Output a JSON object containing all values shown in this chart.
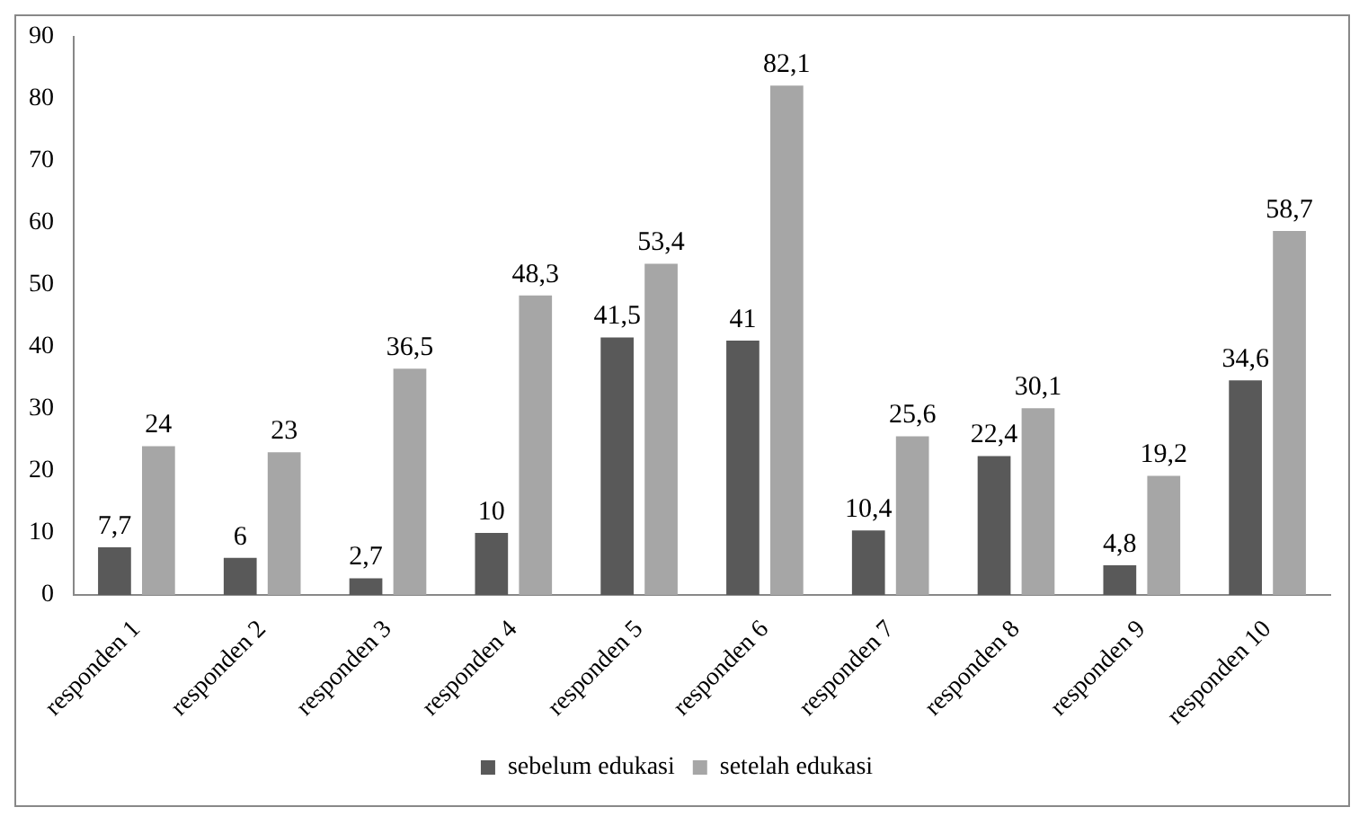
{
  "chart_data": {
    "type": "bar",
    "categories": [
      "responden 1",
      "responden 2",
      "responden 3",
      "responden 4",
      "responden 5",
      "responden 6",
      "responden 7",
      "responden 8",
      "responden 9",
      "responden 10"
    ],
    "series": [
      {
        "name": "sebelum edukasi",
        "color": "#595959",
        "values": [
          7.7,
          6,
          2.7,
          10,
          41.5,
          41,
          10.4,
          22.4,
          4.8,
          34.6
        ],
        "value_labels": [
          "7,7",
          "6",
          "2,7",
          "10",
          "41,5",
          "41",
          "10,4",
          "22,4",
          "4,8",
          "34,6"
        ]
      },
      {
        "name": "setelah edukasi",
        "color": "#a6a6a6",
        "values": [
          24,
          23,
          36.5,
          48.3,
          53.4,
          82.1,
          25.6,
          30.1,
          19.2,
          58.7
        ],
        "value_labels": [
          "24",
          "23",
          "36,5",
          "48,3",
          "53,4",
          "82,1",
          "25,6",
          "30,1",
          "19,2",
          "58,7"
        ]
      }
    ],
    "ylim": [
      0,
      90
    ],
    "yticks": [
      0,
      10,
      20,
      30,
      40,
      50,
      60,
      70,
      80,
      90
    ],
    "grid": false,
    "legend": "bottom"
  }
}
